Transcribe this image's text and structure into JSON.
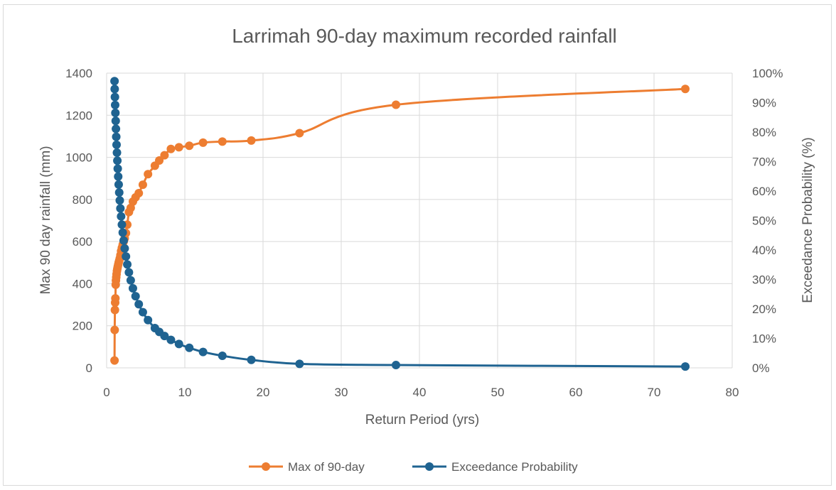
{
  "chart_data": {
    "type": "scatter",
    "title": "Larrimah 90-day maximum recorded rainfall",
    "xlabel": "Return Period (yrs)",
    "ylabel": "Max 90 day rainfall (mm)",
    "y2label": "Exceedance Probability (%)",
    "xlim": [
      0,
      80
    ],
    "ylim": [
      0,
      1400
    ],
    "y2lim": [
      0,
      100
    ],
    "x_ticks": [
      "0",
      "10",
      "20",
      "30",
      "40",
      "50",
      "60",
      "70",
      "80"
    ],
    "y_ticks": [
      "0",
      "200",
      "400",
      "600",
      "800",
      "1000",
      "1200",
      "1400"
    ],
    "y2_ticks": [
      "0%",
      "10%",
      "20%",
      "30%",
      "40%",
      "50%",
      "60%",
      "70%",
      "80%",
      "90%",
      "100%"
    ],
    "grid": true,
    "legend_position": "bottom",
    "colors": {
      "rainfall": "#ED7D31",
      "probability": "#1F6391",
      "grid": "#d9d9d9",
      "text": "#595959"
    },
    "series": [
      {
        "name": "Max of 90-day",
        "axis": "left",
        "x": [
          1.01,
          1.03,
          1.06,
          1.09,
          1.12,
          1.16,
          1.19,
          1.23,
          1.27,
          1.32,
          1.37,
          1.42,
          1.48,
          1.54,
          1.61,
          1.68,
          1.76,
          1.85,
          1.95,
          2.06,
          2.18,
          2.31,
          2.47,
          2.64,
          2.85,
          3.08,
          3.36,
          3.7,
          4.11,
          4.63,
          5.29,
          6.17,
          6.73,
          7.4,
          8.22,
          9.25,
          10.57,
          12.33,
          14.8,
          18.5,
          24.67,
          37.0,
          74.0
        ],
        "y": [
          35,
          180,
          275,
          310,
          330,
          395,
          415,
          430,
          445,
          460,
          470,
          480,
          490,
          500,
          510,
          520,
          535,
          555,
          570,
          585,
          600,
          615,
          640,
          680,
          740,
          760,
          790,
          810,
          830,
          870,
          920,
          960,
          985,
          1010,
          1040,
          1048,
          1055,
          1070,
          1075,
          1080,
          1115,
          1250,
          1325
        ]
      },
      {
        "name": "Exceedance Probability",
        "axis": "right",
        "x": [
          1.01,
          1.03,
          1.06,
          1.09,
          1.12,
          1.16,
          1.19,
          1.23,
          1.27,
          1.32,
          1.37,
          1.42,
          1.48,
          1.54,
          1.61,
          1.68,
          1.76,
          1.85,
          1.95,
          2.06,
          2.18,
          2.31,
          2.47,
          2.64,
          2.85,
          3.08,
          3.36,
          3.7,
          4.11,
          4.63,
          5.29,
          6.17,
          6.73,
          7.4,
          8.22,
          9.25,
          10.57,
          12.33,
          14.8,
          18.5,
          24.67,
          37.0,
          74.0
        ],
        "y": [
          97.3,
          94.6,
          91.9,
          89.2,
          86.5,
          83.8,
          81.1,
          78.4,
          75.7,
          73.0,
          70.3,
          67.6,
          64.9,
          62.2,
          59.5,
          56.8,
          54.1,
          51.4,
          48.6,
          45.9,
          43.2,
          40.5,
          37.8,
          35.1,
          32.4,
          29.7,
          27.0,
          24.3,
          21.6,
          18.9,
          16.2,
          13.5,
          12.2,
          10.8,
          9.5,
          8.1,
          6.8,
          5.4,
          4.1,
          2.7,
          1.35,
          0.95,
          0.45
        ]
      }
    ]
  }
}
